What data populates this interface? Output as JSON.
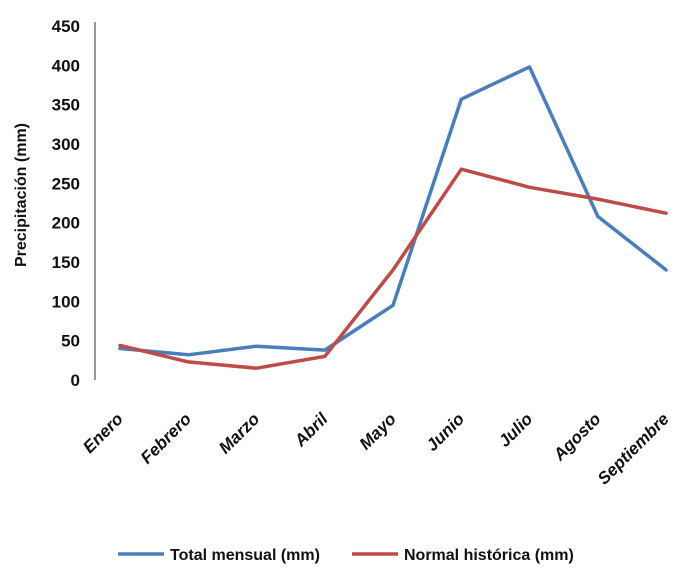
{
  "chart_data": {
    "type": "line",
    "categories": [
      "Enero",
      "Febrero",
      "Marzo",
      "Abril",
      "Mayo",
      "Junio",
      "Julio",
      "Agosto",
      "Septiembre"
    ],
    "series": [
      {
        "name": "Total mensual (mm)",
        "color": "#4a7ebb",
        "values": [
          40,
          32,
          43,
          38,
          95,
          357,
          398,
          208,
          140
        ]
      },
      {
        "name": "Normal histórica (mm)",
        "color": "#be4b48",
        "values": [
          44,
          23,
          15,
          30,
          140,
          268,
          245,
          230,
          212
        ]
      }
    ],
    "ylabel": "Precipitación (mm)",
    "xlabel": "",
    "ylim": [
      0,
      450
    ],
    "yticks": [
      0,
      50,
      100,
      150,
      200,
      250,
      300,
      350,
      400,
      450
    ],
    "grid": false,
    "legend_position": "bottom"
  }
}
